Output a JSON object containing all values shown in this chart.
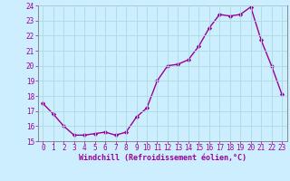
{
  "x": [
    0,
    1,
    2,
    3,
    4,
    5,
    6,
    7,
    8,
    9,
    10,
    11,
    12,
    13,
    14,
    15,
    16,
    17,
    18,
    19,
    20,
    21,
    22,
    23
  ],
  "y": [
    17.5,
    16.8,
    16.0,
    15.4,
    15.4,
    15.5,
    15.6,
    15.4,
    15.6,
    16.6,
    17.2,
    19.0,
    20.0,
    20.1,
    20.4,
    21.3,
    22.5,
    23.4,
    23.3,
    23.4,
    23.9,
    21.7,
    20.0,
    18.1
  ],
  "line_color": "#990099",
  "marker": "D",
  "marker_size": 2.2,
  "bg_color": "#cceeff",
  "grid_color": "#aadddd",
  "xlabel": "Windchill (Refroidissement éolien,°C)",
  "xlabel_color": "#990099",
  "tick_color": "#990099",
  "label_color": "#990099",
  "ylim": [
    15,
    24
  ],
  "xlim": [
    -0.5,
    23.5
  ],
  "yticks": [
    15,
    16,
    17,
    18,
    19,
    20,
    21,
    22,
    23,
    24
  ],
  "xticks": [
    0,
    1,
    2,
    3,
    4,
    5,
    6,
    7,
    8,
    9,
    10,
    11,
    12,
    13,
    14,
    15,
    16,
    17,
    18,
    19,
    20,
    21,
    22,
    23
  ],
  "tick_fontsize": 5.5,
  "xlabel_fontsize": 6.0,
  "spine_color": "#888888",
  "linewidth": 1.0
}
